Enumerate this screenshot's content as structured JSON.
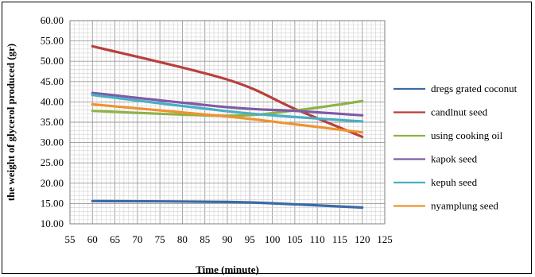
{
  "chart_data": {
    "type": "line",
    "xlabel": "Time (minute)",
    "ylabel": "the weight of glycerol produced (gr)",
    "xlim": [
      55,
      125
    ],
    "ylim": [
      10,
      60
    ],
    "xticks": [
      55,
      60,
      65,
      70,
      75,
      80,
      85,
      90,
      95,
      100,
      105,
      110,
      115,
      120,
      125
    ],
    "yticks": [
      10,
      15,
      20,
      25,
      30,
      35,
      40,
      45,
      50,
      55,
      60
    ],
    "x_tick_labels": [
      "55",
      "60",
      "65",
      "70",
      "75",
      "80",
      "85",
      "90",
      "95",
      "100",
      "105",
      "110",
      "115",
      "120",
      "125"
    ],
    "y_tick_labels": [
      "10.00",
      "15.00",
      "20.00",
      "25.00",
      "30.00",
      "35.00",
      "40.00",
      "45.00",
      "50.00",
      "55.00",
      "60.00"
    ],
    "grid": true,
    "legend_position": "right",
    "x": [
      60,
      90,
      105,
      120
    ],
    "series": [
      {
        "name": "dregs grated coconut",
        "color": "#3b6aa8",
        "values": [
          15.6,
          15.4,
          14.8,
          14.0
        ]
      },
      {
        "name": "candlnut seed",
        "color": "#b8403b",
        "values": [
          53.7,
          45.5,
          38.3,
          31.4
        ]
      },
      {
        "name": "using cooking oil",
        "color": "#8db347",
        "values": [
          37.8,
          36.6,
          37.9,
          40.2
        ]
      },
      {
        "name": "kapok seed",
        "color": "#7d5ba6",
        "values": [
          42.2,
          38.7,
          37.8,
          36.7
        ]
      },
      {
        "name": "kepuh seed",
        "color": "#4aaec4",
        "values": [
          41.7,
          37.7,
          36.3,
          35.2
        ]
      },
      {
        "name": "nyamplung seed",
        "color": "#f0922f",
        "values": [
          39.4,
          36.4,
          34.5,
          32.5
        ]
      }
    ]
  }
}
